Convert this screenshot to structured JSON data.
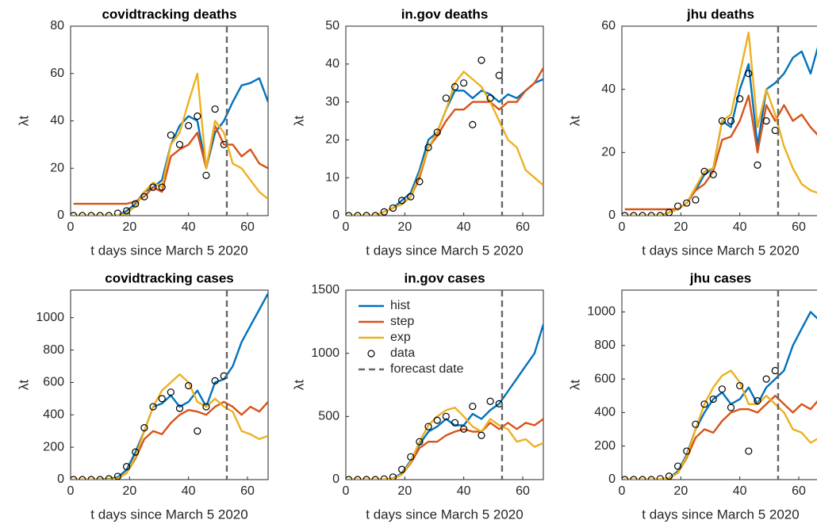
{
  "chart_data": [
    {
      "type": "line",
      "title": "covidtracking deaths",
      "xlabel": "t days since March 5 2020",
      "ylabel": "λt",
      "xlim": [
        0,
        67
      ],
      "xticks": [
        0,
        20,
        40,
        60
      ],
      "ylim": [
        0,
        80
      ],
      "yticks": [
        0,
        20,
        40,
        60,
        80
      ],
      "x": [
        1,
        4,
        7,
        10,
        13,
        16,
        19,
        22,
        25,
        28,
        31,
        34,
        37,
        40,
        43,
        46,
        49,
        52,
        55,
        58,
        61,
        64,
        67
      ],
      "series": [
        {
          "name": "hist",
          "color": "#0072BD",
          "values": [
            0,
            0,
            0,
            0,
            0,
            0,
            2,
            5,
            10,
            12,
            15,
            30,
            38,
            42,
            40,
            20,
            35,
            40,
            48,
            55,
            56,
            58,
            48
          ]
        },
        {
          "name": "step",
          "color": "#D95319",
          "values": [
            5,
            5,
            5,
            5,
            5,
            5,
            5,
            6,
            8,
            12,
            10,
            25,
            28,
            30,
            35,
            20,
            38,
            30,
            30,
            25,
            28,
            22,
            20
          ]
        },
        {
          "name": "exp",
          "color": "#EDB120",
          "values": [
            0,
            0,
            0,
            0,
            0,
            0,
            1,
            4,
            10,
            14,
            12,
            30,
            35,
            48,
            60,
            20,
            40,
            35,
            22,
            20,
            15,
            10,
            7
          ]
        },
        {
          "name": "data",
          "color": "#000000",
          "marker": "circle",
          "values": [
            0,
            0,
            0,
            0,
            0,
            1,
            2,
            5,
            8,
            12,
            12,
            34,
            30,
            38,
            42,
            17,
            45,
            30,
            null,
            null,
            null,
            null,
            null
          ]
        }
      ],
      "vline": {
        "name": "forecast date",
        "x": 53,
        "color": "#666666"
      }
    },
    {
      "type": "line",
      "title": "in.gov deaths",
      "xlabel": "t days since March 5 2020",
      "ylabel": "λt",
      "xlim": [
        0,
        67
      ],
      "xticks": [
        0,
        20,
        40,
        60
      ],
      "ylim": [
        0,
        50
      ],
      "yticks": [
        0,
        10,
        20,
        30,
        40,
        50
      ],
      "x": [
        1,
        4,
        7,
        10,
        13,
        16,
        19,
        22,
        25,
        28,
        31,
        34,
        37,
        40,
        43,
        46,
        49,
        52,
        55,
        58,
        61,
        64,
        67
      ],
      "series": [
        {
          "name": "hist",
          "color": "#0072BD",
          "values": [
            0,
            0,
            0,
            0,
            1,
            2,
            4,
            6,
            12,
            20,
            22,
            28,
            33,
            33,
            31,
            33,
            32,
            30,
            32,
            31,
            33,
            35,
            36
          ]
        },
        {
          "name": "step",
          "color": "#D95319",
          "values": [
            0,
            0,
            0,
            0,
            1,
            2,
            3,
            5,
            10,
            18,
            21,
            25,
            28,
            28,
            30,
            30,
            30,
            28,
            30,
            30,
            33,
            35,
            39
          ]
        },
        {
          "name": "exp",
          "color": "#EDB120",
          "values": [
            0,
            0,
            0,
            0,
            1,
            2,
            3,
            5,
            11,
            18,
            22,
            28,
            35,
            38,
            36,
            34,
            30,
            25,
            20,
            18,
            12,
            10,
            8
          ]
        },
        {
          "name": "data",
          "color": "#000000",
          "marker": "circle",
          "values": [
            0,
            0,
            0,
            0,
            1,
            2,
            4,
            5,
            9,
            18,
            22,
            31,
            34,
            35,
            24,
            41,
            31,
            37,
            null,
            null,
            null,
            null,
            null
          ]
        }
      ],
      "vline": {
        "name": "forecast date",
        "x": 53,
        "color": "#666666"
      }
    },
    {
      "type": "line",
      "title": "jhu deaths",
      "xlabel": "t days since March 5 2020",
      "ylabel": "λt",
      "xlim": [
        0,
        67
      ],
      "xticks": [
        0,
        20,
        40,
        60
      ],
      "ylim": [
        0,
        60
      ],
      "yticks": [
        0,
        20,
        40,
        60
      ],
      "x": [
        1,
        4,
        7,
        10,
        13,
        16,
        19,
        22,
        25,
        28,
        31,
        34,
        37,
        40,
        43,
        46,
        49,
        52,
        55,
        58,
        61,
        64,
        67
      ],
      "series": [
        {
          "name": "hist",
          "color": "#0072BD",
          "values": [
            0,
            0,
            0,
            0,
            0,
            1,
            2,
            4,
            8,
            13,
            15,
            30,
            28,
            40,
            48,
            22,
            40,
            42,
            45,
            50,
            52,
            45,
            55
          ]
        },
        {
          "name": "step",
          "color": "#D95319",
          "values": [
            2,
            2,
            2,
            2,
            2,
            2,
            2,
            4,
            8,
            10,
            14,
            24,
            25,
            30,
            38,
            20,
            35,
            30,
            35,
            30,
            32,
            28,
            25
          ]
        },
        {
          "name": "exp",
          "color": "#EDB120",
          "values": [
            0,
            0,
            0,
            0,
            0,
            1,
            2,
            4,
            9,
            14,
            15,
            30,
            32,
            45,
            58,
            28,
            40,
            32,
            22,
            15,
            10,
            8,
            7
          ]
        },
        {
          "name": "data",
          "color": "#000000",
          "marker": "circle",
          "values": [
            0,
            0,
            0,
            0,
            0,
            1,
            3,
            4,
            5,
            14,
            13,
            30,
            30,
            37,
            45,
            16,
            30,
            27,
            null,
            null,
            null,
            null,
            null
          ]
        }
      ],
      "vline": {
        "name": "forecast date",
        "x": 53,
        "color": "#666666"
      }
    },
    {
      "type": "line",
      "title": "covidtracking cases",
      "xlabel": "t days since March 5 2020",
      "ylabel": "λt",
      "xlim": [
        0,
        67
      ],
      "xticks": [
        0,
        20,
        40,
        60
      ],
      "ylim": [
        0,
        1170
      ],
      "yticks": [
        0,
        200,
        400,
        600,
        800,
        1000
      ],
      "x": [
        1,
        4,
        7,
        10,
        13,
        16,
        19,
        22,
        25,
        28,
        31,
        34,
        37,
        40,
        43,
        46,
        49,
        52,
        55,
        58,
        61,
        64,
        67
      ],
      "series": [
        {
          "name": "hist",
          "color": "#0072BD",
          "values": [
            0,
            0,
            0,
            2,
            5,
            15,
            60,
            170,
            300,
            450,
            470,
            520,
            450,
            480,
            550,
            450,
            600,
            620,
            700,
            850,
            950,
            1050,
            1150
          ]
        },
        {
          "name": "step",
          "color": "#D95319",
          "values": [
            0,
            0,
            0,
            0,
            2,
            8,
            40,
            130,
            250,
            300,
            280,
            350,
            400,
            430,
            420,
            400,
            450,
            480,
            450,
            400,
            450,
            420,
            480
          ]
        },
        {
          "name": "exp",
          "color": "#EDB120",
          "values": [
            0,
            0,
            0,
            0,
            2,
            8,
            40,
            140,
            300,
            450,
            550,
            600,
            650,
            600,
            480,
            450,
            500,
            450,
            420,
            300,
            280,
            250,
            270
          ]
        },
        {
          "name": "data",
          "color": "#000000",
          "marker": "circle",
          "values": [
            0,
            0,
            0,
            0,
            5,
            20,
            80,
            170,
            320,
            450,
            500,
            540,
            440,
            580,
            300,
            450,
            610,
            640,
            null,
            null,
            null,
            null,
            null
          ]
        }
      ],
      "vline": {
        "name": "forecast date",
        "x": 53,
        "color": "#666666"
      }
    },
    {
      "type": "line",
      "title": "in.gov cases",
      "xlabel": "t days since March 5 2020",
      "ylabel": "λt",
      "xlim": [
        0,
        67
      ],
      "xticks": [
        0,
        20,
        40,
        60
      ],
      "ylim": [
        0,
        1500
      ],
      "yticks": [
        0,
        500,
        1000,
        1500
      ],
      "x": [
        1,
        4,
        7,
        10,
        13,
        16,
        19,
        22,
        25,
        28,
        31,
        34,
        37,
        40,
        43,
        46,
        49,
        52,
        55,
        58,
        61,
        64,
        67
      ],
      "series": [
        {
          "name": "hist",
          "color": "#0072BD",
          "values": [
            0,
            0,
            0,
            0,
            2,
            10,
            50,
            150,
            280,
            380,
            420,
            480,
            430,
            430,
            520,
            480,
            550,
            600,
            700,
            800,
            900,
            1000,
            1230
          ]
        },
        {
          "name": "step",
          "color": "#D95319",
          "values": [
            0,
            0,
            0,
            0,
            2,
            8,
            40,
            130,
            250,
            300,
            300,
            350,
            380,
            400,
            380,
            380,
            450,
            400,
            450,
            400,
            450,
            430,
            480
          ]
        },
        {
          "name": "exp",
          "color": "#EDB120",
          "values": [
            0,
            0,
            0,
            0,
            2,
            8,
            40,
            140,
            300,
            430,
            500,
            550,
            570,
            500,
            420,
            380,
            480,
            430,
            400,
            300,
            320,
            260,
            290
          ]
        },
        {
          "name": "data",
          "color": "#000000",
          "marker": "circle",
          "values": [
            0,
            0,
            0,
            0,
            5,
            20,
            80,
            180,
            300,
            420,
            470,
            500,
            450,
            400,
            580,
            350,
            620,
            600,
            null,
            null,
            null,
            null,
            null
          ]
        }
      ],
      "vline": {
        "name": "forecast date",
        "x": 53,
        "color": "#666666"
      },
      "legend": "upper left"
    },
    {
      "type": "line",
      "title": "jhu cases",
      "xlabel": "t days since March 5 2020",
      "ylabel": "λt",
      "xlim": [
        0,
        67
      ],
      "xticks": [
        0,
        20,
        40,
        60
      ],
      "ylim": [
        0,
        1130
      ],
      "yticks": [
        0,
        200,
        400,
        600,
        800,
        1000
      ],
      "x": [
        1,
        4,
        7,
        10,
        13,
        16,
        19,
        22,
        25,
        28,
        31,
        34,
        37,
        40,
        43,
        46,
        49,
        52,
        55,
        58,
        61,
        64,
        67
      ],
      "series": [
        {
          "name": "hist",
          "color": "#0072BD",
          "values": [
            0,
            0,
            0,
            0,
            2,
            10,
            50,
            150,
            300,
            400,
            480,
            520,
            450,
            480,
            550,
            450,
            550,
            600,
            650,
            800,
            900,
            1000,
            950
          ]
        },
        {
          "name": "step",
          "color": "#D95319",
          "values": [
            0,
            0,
            0,
            0,
            2,
            8,
            40,
            130,
            250,
            300,
            280,
            350,
            400,
            420,
            420,
            400,
            450,
            500,
            450,
            400,
            450,
            420,
            480
          ]
        },
        {
          "name": "exp",
          "color": "#EDB120",
          "values": [
            0,
            0,
            0,
            0,
            2,
            8,
            40,
            140,
            300,
            450,
            550,
            620,
            650,
            580,
            450,
            450,
            500,
            450,
            400,
            300,
            280,
            220,
            250
          ]
        },
        {
          "name": "data",
          "color": "#000000",
          "marker": "circle",
          "values": [
            0,
            0,
            0,
            0,
            5,
            20,
            80,
            170,
            330,
            450,
            480,
            540,
            430,
            560,
            170,
            470,
            600,
            650,
            null,
            null,
            null,
            null,
            null
          ]
        }
      ],
      "vline": {
        "name": "forecast date",
        "x": 53,
        "color": "#666666"
      }
    }
  ]
}
